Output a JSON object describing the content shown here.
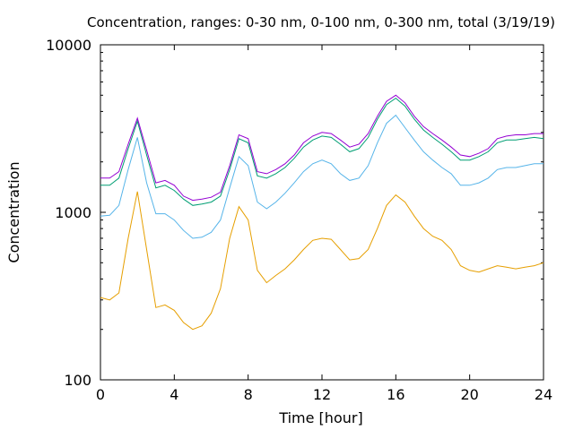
{
  "chart_data": {
    "type": "line",
    "title": "Concentration, ranges: 0-30 nm, 0-100 nm, 0-300 nm, total (3/19/19)",
    "xlabel": "Time [hour]",
    "ylabel": "Concentration",
    "xlim": [
      0,
      24
    ],
    "ylim": [
      100,
      10000
    ],
    "yscale": "log",
    "x_ticks": [
      0,
      4,
      8,
      12,
      16,
      20,
      24
    ],
    "x_tick_labels": [
      "0",
      "4",
      "8",
      "12",
      "16",
      "20",
      "24"
    ],
    "y_ticks": [
      100,
      1000,
      10000
    ],
    "y_tick_labels": [
      "100",
      "1000",
      "10000"
    ],
    "grid": false,
    "x": [
      0,
      0.5,
      1,
      1.5,
      2,
      2.5,
      3,
      3.5,
      4,
      4.5,
      5,
      5.5,
      6,
      6.5,
      7,
      7.5,
      8,
      8.5,
      9,
      9.5,
      10,
      10.5,
      11,
      11.5,
      12,
      12.5,
      13,
      13.5,
      14,
      14.5,
      15,
      15.5,
      16,
      16.5,
      17,
      17.5,
      18,
      18.5,
      19,
      19.5,
      20,
      20.5,
      21,
      21.5,
      22,
      22.5,
      23,
      23.5,
      24
    ],
    "series": [
      {
        "color": "#e69f00",
        "values": [
          310,
          300,
          330,
          700,
          1330,
          600,
          270,
          280,
          260,
          220,
          200,
          210,
          250,
          350,
          700,
          1080,
          900,
          450,
          380,
          420,
          460,
          520,
          600,
          680,
          700,
          690,
          600,
          520,
          530,
          600,
          800,
          1100,
          1270,
          1150,
          950,
          800,
          720,
          680,
          600,
          480,
          450,
          440,
          460,
          480,
          470,
          460,
          470,
          480,
          500
        ]
      },
      {
        "color": "#56b4e9",
        "values": [
          950,
          960,
          1100,
          1800,
          2800,
          1500,
          980,
          980,
          900,
          780,
          700,
          710,
          760,
          900,
          1400,
          2150,
          1900,
          1150,
          1050,
          1150,
          1300,
          1500,
          1750,
          1950,
          2050,
          1950,
          1700,
          1550,
          1600,
          1900,
          2600,
          3400,
          3800,
          3200,
          2700,
          2300,
          2050,
          1850,
          1700,
          1450,
          1450,
          1500,
          1600,
          1800,
          1850,
          1850,
          1900,
          1950,
          1950
        ]
      },
      {
        "color": "#009e73",
        "values": [
          1450,
          1450,
          1600,
          2400,
          3500,
          2200,
          1400,
          1450,
          1350,
          1200,
          1100,
          1120,
          1150,
          1250,
          1800,
          2750,
          2600,
          1650,
          1600,
          1700,
          1850,
          2100,
          2450,
          2700,
          2850,
          2800,
          2550,
          2300,
          2400,
          2800,
          3600,
          4400,
          4800,
          4300,
          3600,
          3100,
          2800,
          2550,
          2300,
          2050,
          2050,
          2150,
          2300,
          2600,
          2700,
          2700,
          2750,
          2800,
          2750
        ]
      },
      {
        "color": "#9400d3",
        "values": [
          1600,
          1600,
          1750,
          2550,
          3650,
          2350,
          1500,
          1550,
          1450,
          1250,
          1180,
          1200,
          1230,
          1320,
          1900,
          2900,
          2750,
          1750,
          1700,
          1800,
          1950,
          2200,
          2600,
          2850,
          3000,
          2950,
          2700,
          2450,
          2550,
          2950,
          3750,
          4600,
          5000,
          4500,
          3750,
          3250,
          2950,
          2700,
          2450,
          2200,
          2150,
          2250,
          2400,
          2750,
          2850,
          2900,
          2900,
          2950,
          2950
        ]
      }
    ]
  }
}
